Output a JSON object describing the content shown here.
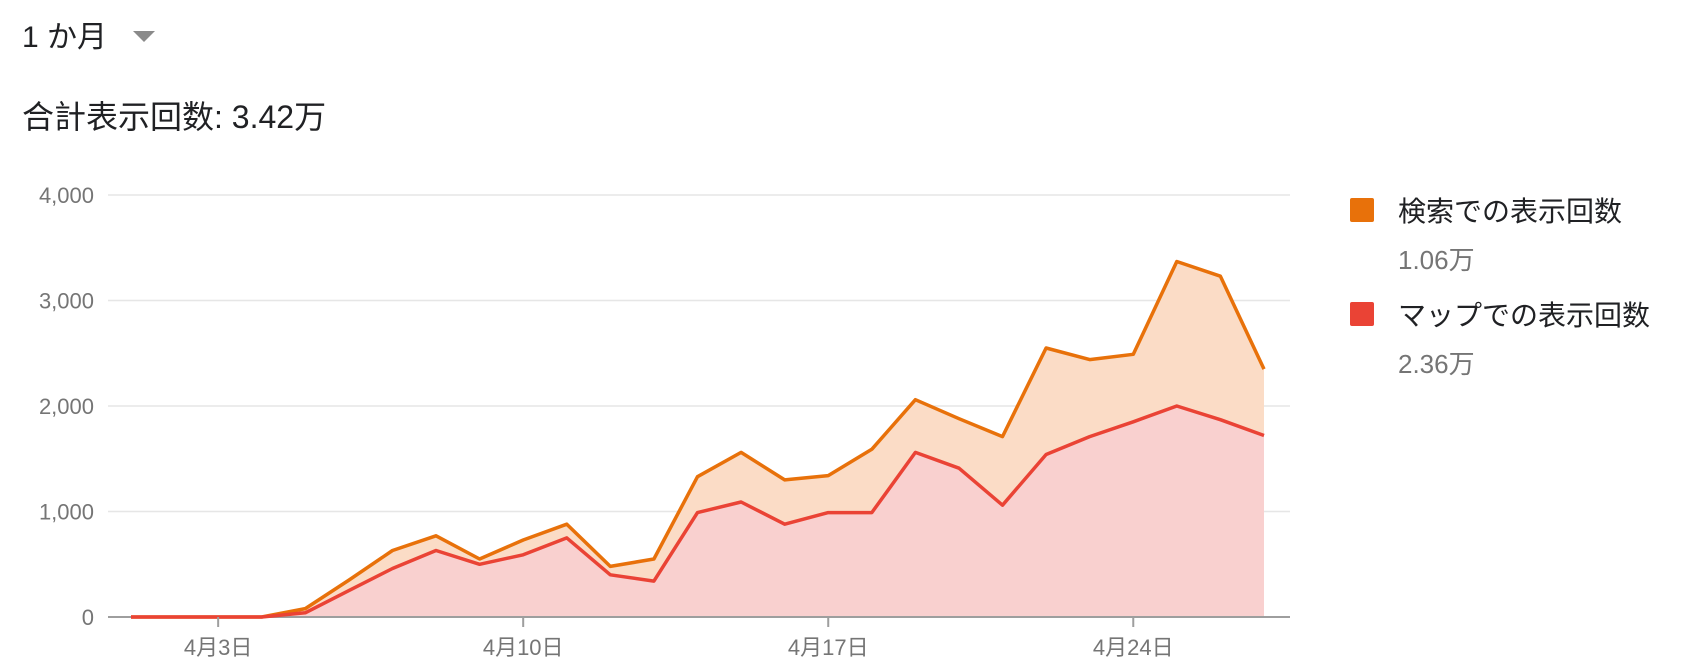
{
  "header": {
    "period_label": "1 か月",
    "total_label": "合計表示回数: 3.42万"
  },
  "legend": {
    "items": [
      {
        "name": "検索での表示回数",
        "value": "1.06万",
        "color": "#e8710a"
      },
      {
        "name": "マップでの表示回数",
        "value": "2.36万",
        "color": "#ea4335"
      }
    ]
  },
  "chart_data": {
    "type": "area",
    "stacked": true,
    "x": [
      "4月1日",
      "4月2日",
      "4月3日",
      "4月4日",
      "4月5日",
      "4月6日",
      "4月7日",
      "4月8日",
      "4月9日",
      "4月10日",
      "4月11日",
      "4月12日",
      "4月13日",
      "4月14日",
      "4月15日",
      "4月16日",
      "4月17日",
      "4月18日",
      "4月19日",
      "4月20日",
      "4月21日",
      "4月22日",
      "4月23日",
      "4月24日",
      "4月25日",
      "4月26日",
      "4月27日"
    ],
    "series": [
      {
        "name": "マップでの表示回数",
        "color": "#ea4335",
        "fill": "#f9d0cf",
        "values": [
          0,
          0,
          0,
          0,
          40,
          250,
          460,
          630,
          500,
          590,
          750,
          400,
          340,
          990,
          1090,
          880,
          990,
          990,
          1560,
          1410,
          1060,
          1540,
          1710,
          1850,
          2000,
          1870,
          1720
        ]
      },
      {
        "name": "検索での表示回数",
        "color": "#e8710a",
        "fill": "#fbdcc6",
        "values": [
          0,
          0,
          0,
          0,
          40,
          100,
          170,
          140,
          50,
          140,
          130,
          80,
          210,
          340,
          470,
          420,
          350,
          600,
          500,
          470,
          650,
          1010,
          730,
          640,
          1370,
          1360,
          630
        ]
      }
    ],
    "x_ticks": [
      "4月3日",
      "4月10日",
      "4月17日",
      "4月24日"
    ],
    "y_ticks": [
      "0",
      "1,000",
      "2,000",
      "3,000",
      "4,000"
    ],
    "ylim": [
      0,
      4000
    ],
    "grid": true,
    "legend_position": "right"
  }
}
